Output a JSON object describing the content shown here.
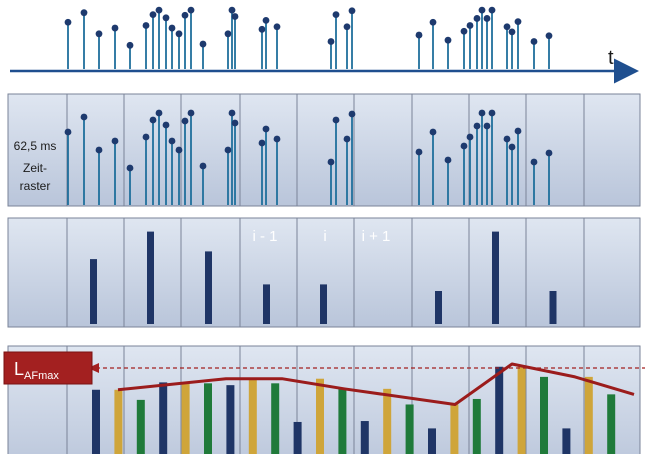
{
  "time_axis_label": "t",
  "raster_label_lines": [
    "62,5 ms",
    "Zeit-",
    "raster"
  ],
  "window_labels": [
    "i - 1",
    "i",
    "i + 1"
  ],
  "lafmax": {
    "main": "L",
    "sub": "AFmax"
  },
  "colors": {
    "stem_blue": "#1f6f9c",
    "dot_blue": "#1e3a6e",
    "bar_navy": "#1f3566",
    "bar_gold": "#cfa53a",
    "bar_green": "#1f7a3a",
    "envelope": "#9b1c1c",
    "panel_fill": "#c7d2e4",
    "panel_border": "#7a8398",
    "lafmax_box": "#a32020"
  },
  "chart_data": [
    {
      "type": "impulse-events",
      "description_axis": "t",
      "event_heights": [
        0.73,
        0.88,
        0.55,
        0.64,
        0.37,
        0.68,
        0.85,
        0.92,
        0.8,
        0.64,
        0.55,
        0.84,
        0.92,
        0.39,
        0.55,
        0.92,
        0.82,
        0.62,
        0.76,
        0.66,
        0.43,
        0.85,
        0.66,
        0.91,
        0.53,
        0.73,
        0.45,
        0.59,
        0.68,
        0.79,
        0.92,
        0.79,
        0.92,
        0.66,
        0.58,
        0.74,
        0.43,
        0.52
      ]
    },
    {
      "type": "bar",
      "name": "per-window maxima",
      "values": [
        null,
        0.59,
        0.84,
        0.66,
        0.36,
        0.36,
        null,
        0.3,
        0.84,
        0.3,
        null
      ]
    },
    {
      "type": "bar+line",
      "name": "sliding maxima",
      "bars": [
        {
          "color": "navy",
          "value": 0.72
        },
        {
          "color": "gold",
          "value": 0.72
        },
        {
          "color": "green",
          "value": 0.61
        },
        {
          "color": "navy",
          "value": 0.8
        },
        {
          "color": "gold",
          "value": 0.8
        },
        {
          "color": "green",
          "value": 0.79
        },
        {
          "color": "navy",
          "value": 0.77
        },
        {
          "color": "gold",
          "value": 0.84
        },
        {
          "color": "green",
          "value": 0.79
        },
        {
          "color": "navy",
          "value": 0.37
        },
        {
          "color": "gold",
          "value": 0.84
        },
        {
          "color": "green",
          "value": 0.73
        },
        {
          "color": "navy",
          "value": 0.38
        },
        {
          "color": "gold",
          "value": 0.73
        },
        {
          "color": "green",
          "value": 0.56
        },
        {
          "color": "navy",
          "value": 0.3
        },
        {
          "color": "gold",
          "value": 0.56
        },
        {
          "color": "green",
          "value": 0.62
        },
        {
          "color": "navy",
          "value": 0.97
        },
        {
          "color": "gold",
          "value": 0.97
        },
        {
          "color": "green",
          "value": 0.86
        },
        {
          "color": "navy",
          "value": 0.3
        },
        {
          "color": "gold",
          "value": 0.86
        },
        {
          "color": "green",
          "value": 0.67
        }
      ],
      "envelope": [
        0.72,
        0.84,
        0.84,
        0.73,
        0.56,
        1.0,
        0.86,
        0.67
      ]
    }
  ]
}
